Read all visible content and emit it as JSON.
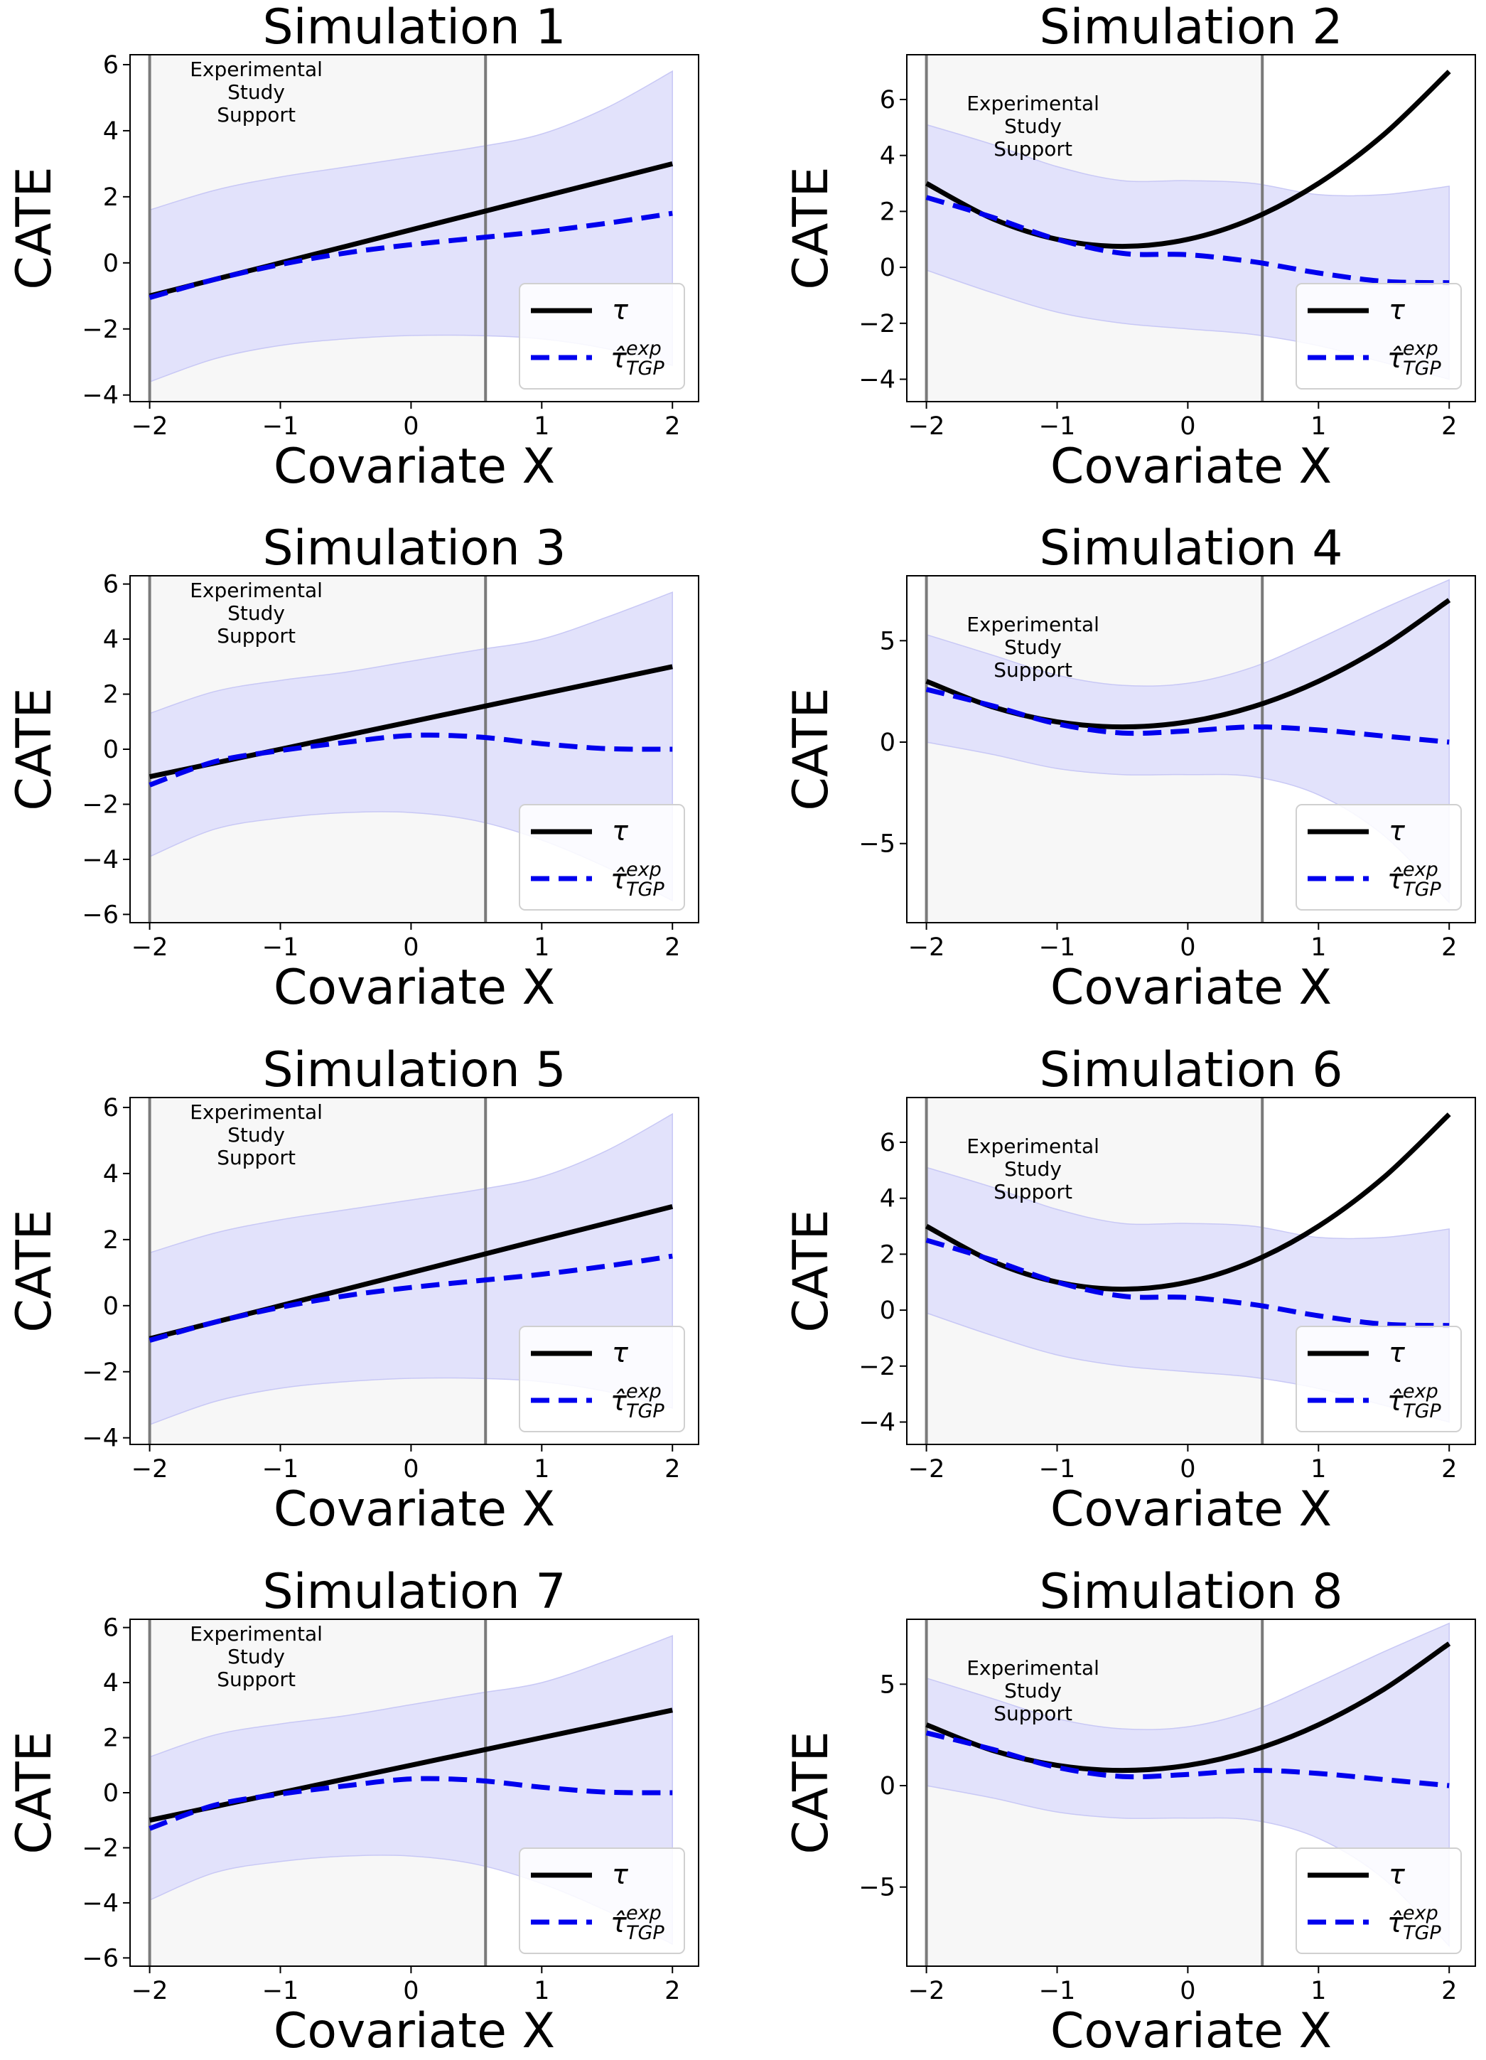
{
  "chart_data": [
    {
      "type": "line",
      "title": "Simulation 1",
      "xlabel": "Covariate X",
      "ylabel": "CATE",
      "xlim": [
        -2.15,
        2.2
      ],
      "ylim": [
        -4.2,
        6.3
      ],
      "xticks": [
        -2,
        -1,
        0,
        1,
        2
      ],
      "yticks": [
        -4,
        -2,
        0,
        2,
        4,
        6
      ],
      "support_region": [
        -2,
        0.57
      ],
      "support_label": [
        "Experimental",
        "Study",
        "Support"
      ],
      "x": [
        -2,
        -1.5,
        -1,
        -0.5,
        0,
        0.5,
        1,
        1.5,
        2
      ],
      "series": [
        {
          "name": "τ",
          "values": [
            -1,
            -0.5,
            0,
            0.5,
            1,
            1.5,
            2,
            2.5,
            3
          ]
        },
        {
          "name": "τ̂ TGP exp",
          "values": [
            -1.05,
            -0.5,
            -0.05,
            0.3,
            0.55,
            0.75,
            0.95,
            1.2,
            1.5
          ]
        }
      ],
      "band_lower": [
        -3.6,
        -2.9,
        -2.5,
        -2.3,
        -2.2,
        -2.2,
        -2.3,
        -2.6,
        -3.1
      ],
      "band_upper": [
        1.6,
        2.2,
        2.6,
        2.9,
        3.2,
        3.5,
        3.9,
        4.7,
        5.8
      ],
      "legend": "lower-right"
    },
    {
      "type": "line",
      "title": "Simulation 2",
      "xlabel": "Covariate X",
      "ylabel": "CATE",
      "xlim": [
        -2.15,
        2.2
      ],
      "ylim": [
        -4.8,
        7.6
      ],
      "xticks": [
        -2,
        -1,
        0,
        1,
        2
      ],
      "yticks": [
        -4,
        -2,
        0,
        2,
        4,
        6
      ],
      "support_region": [
        -2,
        0.57
      ],
      "support_label": [
        "Experimental",
        "Study",
        "Support"
      ],
      "x": [
        -2,
        -1.5,
        -1,
        -0.5,
        0,
        0.5,
        1,
        1.5,
        2
      ],
      "series": [
        {
          "name": "τ",
          "values": [
            3,
            1.75,
            1,
            0.75,
            1,
            1.75,
            3,
            4.75,
            7
          ]
        },
        {
          "name": "τ̂ TGP exp",
          "values": [
            2.5,
            1.8,
            1.0,
            0.5,
            0.45,
            0.2,
            -0.2,
            -0.5,
            -0.55
          ]
        }
      ],
      "band_lower": [
        -0.1,
        -0.9,
        -1.6,
        -2.0,
        -2.2,
        -2.4,
        -2.8,
        -3.4,
        -4.0
      ],
      "band_upper": [
        5.1,
        4.4,
        3.6,
        3.1,
        3.1,
        3.0,
        2.6,
        2.6,
        2.9
      ],
      "legend": "lower-right"
    },
    {
      "type": "line",
      "title": "Simulation 3",
      "xlabel": "Covariate X",
      "ylabel": "CATE",
      "xlim": [
        -2.15,
        2.2
      ],
      "ylim": [
        -6.3,
        6.3
      ],
      "xticks": [
        -2,
        -1,
        0,
        1,
        2
      ],
      "yticks": [
        -6,
        -4,
        -2,
        0,
        2,
        4,
        6
      ],
      "support_region": [
        -2,
        0.57
      ],
      "support_label": [
        "Experimental",
        "Study",
        "Support"
      ],
      "x": [
        -2,
        -1.5,
        -1,
        -0.5,
        0,
        0.5,
        1,
        1.5,
        2
      ],
      "series": [
        {
          "name": "τ",
          "values": [
            -1,
            -0.5,
            0,
            0.5,
            1,
            1.5,
            2,
            2.5,
            3
          ]
        },
        {
          "name": "τ̂ TGP exp",
          "values": [
            -1.3,
            -0.45,
            -0.05,
            0.25,
            0.5,
            0.45,
            0.2,
            0.02,
            0
          ]
        }
      ],
      "band_lower": [
        -3.9,
        -2.9,
        -2.5,
        -2.3,
        -2.3,
        -2.6,
        -3.3,
        -4.3,
        -5.5
      ],
      "band_upper": [
        1.3,
        2.1,
        2.5,
        2.8,
        3.2,
        3.6,
        4.0,
        4.8,
        5.7
      ],
      "legend": "lower-right"
    },
    {
      "type": "line",
      "title": "Simulation 4",
      "xlabel": "Covariate X",
      "ylabel": "CATE",
      "xlim": [
        -2.15,
        2.2
      ],
      "ylim": [
        -8.9,
        8.2
      ],
      "xticks": [
        -2,
        -1,
        0,
        1,
        2
      ],
      "yticks": [
        -5,
        0,
        5
      ],
      "support_region": [
        -2,
        0.57
      ],
      "support_label": [
        "Experimental",
        "Study",
        "Support"
      ],
      "x": [
        -2,
        -1.5,
        -1,
        -0.5,
        0,
        0.5,
        1,
        1.5,
        2
      ],
      "series": [
        {
          "name": "τ",
          "values": [
            3,
            1.75,
            1,
            0.75,
            1,
            1.75,
            3,
            4.75,
            7
          ]
        },
        {
          "name": "τ̂ TGP exp",
          "values": [
            2.6,
            1.8,
            0.9,
            0.45,
            0.55,
            0.75,
            0.6,
            0.3,
            0
          ]
        }
      ],
      "band_lower": [
        0,
        -0.6,
        -1.3,
        -1.6,
        -1.6,
        -1.7,
        -2.6,
        -4.6,
        -7.9
      ],
      "band_upper": [
        5.3,
        4.3,
        3.3,
        2.8,
        2.9,
        3.7,
        5.1,
        6.6,
        8.0
      ],
      "legend": "lower-right"
    },
    {
      "type": "line",
      "title": "Simulation 5",
      "xlabel": "Covariate X",
      "ylabel": "CATE",
      "xlim": [
        -2.15,
        2.2
      ],
      "ylim": [
        -4.2,
        6.3
      ],
      "xticks": [
        -2,
        -1,
        0,
        1,
        2
      ],
      "yticks": [
        -4,
        -2,
        0,
        2,
        4,
        6
      ],
      "support_region": [
        -2,
        0.57
      ],
      "support_label": [
        "Experimental",
        "Study",
        "Support"
      ],
      "x": [
        -2,
        -1.5,
        -1,
        -0.5,
        0,
        0.5,
        1,
        1.5,
        2
      ],
      "series": [
        {
          "name": "τ",
          "values": [
            -1,
            -0.5,
            0,
            0.5,
            1,
            1.5,
            2,
            2.5,
            3
          ]
        },
        {
          "name": "τ̂ TGP exp",
          "values": [
            -1.05,
            -0.5,
            -0.05,
            0.3,
            0.55,
            0.75,
            0.95,
            1.2,
            1.5
          ]
        }
      ],
      "band_lower": [
        -3.6,
        -2.9,
        -2.5,
        -2.3,
        -2.2,
        -2.2,
        -2.3,
        -2.6,
        -3.1
      ],
      "band_upper": [
        1.6,
        2.2,
        2.6,
        2.9,
        3.2,
        3.5,
        3.9,
        4.7,
        5.8
      ],
      "legend": "lower-right"
    },
    {
      "type": "line",
      "title": "Simulation 6",
      "xlabel": "Covariate X",
      "ylabel": "CATE",
      "xlim": [
        -2.15,
        2.2
      ],
      "ylim": [
        -4.8,
        7.6
      ],
      "xticks": [
        -2,
        -1,
        0,
        1,
        2
      ],
      "yticks": [
        -4,
        -2,
        0,
        2,
        4,
        6
      ],
      "support_region": [
        -2,
        0.57
      ],
      "support_label": [
        "Experimental",
        "Study",
        "Support"
      ],
      "x": [
        -2,
        -1.5,
        -1,
        -0.5,
        0,
        0.5,
        1,
        1.5,
        2
      ],
      "series": [
        {
          "name": "τ",
          "values": [
            3,
            1.75,
            1,
            0.75,
            1,
            1.75,
            3,
            4.75,
            7
          ]
        },
        {
          "name": "τ̂ TGP exp",
          "values": [
            2.5,
            1.8,
            1.0,
            0.5,
            0.45,
            0.2,
            -0.2,
            -0.5,
            -0.55
          ]
        }
      ],
      "band_lower": [
        -0.1,
        -0.9,
        -1.6,
        -2.0,
        -2.2,
        -2.4,
        -2.8,
        -3.4,
        -4.0
      ],
      "band_upper": [
        5.1,
        4.4,
        3.6,
        3.1,
        3.1,
        3.0,
        2.6,
        2.6,
        2.9
      ],
      "legend": "lower-right"
    },
    {
      "type": "line",
      "title": "Simulation 7",
      "xlabel": "Covariate X",
      "ylabel": "CATE",
      "xlim": [
        -2.15,
        2.2
      ],
      "ylim": [
        -6.3,
        6.3
      ],
      "xticks": [
        -2,
        -1,
        0,
        1,
        2
      ],
      "yticks": [
        -6,
        -4,
        -2,
        0,
        2,
        4,
        6
      ],
      "support_region": [
        -2,
        0.57
      ],
      "support_label": [
        "Experimental",
        "Study",
        "Support"
      ],
      "x": [
        -2,
        -1.5,
        -1,
        -0.5,
        0,
        0.5,
        1,
        1.5,
        2
      ],
      "series": [
        {
          "name": "τ",
          "values": [
            -1,
            -0.5,
            0,
            0.5,
            1,
            1.5,
            2,
            2.5,
            3
          ]
        },
        {
          "name": "τ̂ TGP exp",
          "values": [
            -1.3,
            -0.45,
            -0.05,
            0.25,
            0.5,
            0.45,
            0.2,
            0.02,
            0
          ]
        }
      ],
      "band_lower": [
        -3.9,
        -2.9,
        -2.5,
        -2.3,
        -2.3,
        -2.6,
        -3.3,
        -4.3,
        -5.5
      ],
      "band_upper": [
        1.3,
        2.1,
        2.5,
        2.8,
        3.2,
        3.6,
        4.0,
        4.8,
        5.7
      ],
      "legend": "lower-right"
    },
    {
      "type": "line",
      "title": "Simulation 8",
      "xlabel": "Covariate X",
      "ylabel": "CATE",
      "xlim": [
        -2.15,
        2.2
      ],
      "ylim": [
        -8.9,
        8.2
      ],
      "xticks": [
        -2,
        -1,
        0,
        1,
        2
      ],
      "yticks": [
        -5,
        0,
        5
      ],
      "support_region": [
        -2,
        0.57
      ],
      "support_label": [
        "Experimental",
        "Study",
        "Support"
      ],
      "x": [
        -2,
        -1.5,
        -1,
        -0.5,
        0,
        0.5,
        1,
        1.5,
        2
      ],
      "series": [
        {
          "name": "τ",
          "values": [
            3,
            1.75,
            1,
            0.75,
            1,
            1.75,
            3,
            4.75,
            7
          ]
        },
        {
          "name": "τ̂ TGP exp",
          "values": [
            2.6,
            1.8,
            0.9,
            0.45,
            0.55,
            0.75,
            0.6,
            0.3,
            0
          ]
        }
      ],
      "band_lower": [
        0,
        -0.6,
        -1.3,
        -1.6,
        -1.6,
        -1.7,
        -2.6,
        -4.6,
        -7.9
      ],
      "band_upper": [
        5.3,
        4.3,
        3.3,
        2.8,
        2.9,
        3.7,
        5.1,
        6.6,
        8.0
      ],
      "legend": "lower-right"
    }
  ],
  "colors": {
    "true_line": "#000000",
    "estimate_line": "#0000ee",
    "band_fill": "#e2e2fb",
    "band_edge": "#c8c8f5",
    "support_shade": "#f7f7f7",
    "support_line": "#7a7a7a"
  }
}
